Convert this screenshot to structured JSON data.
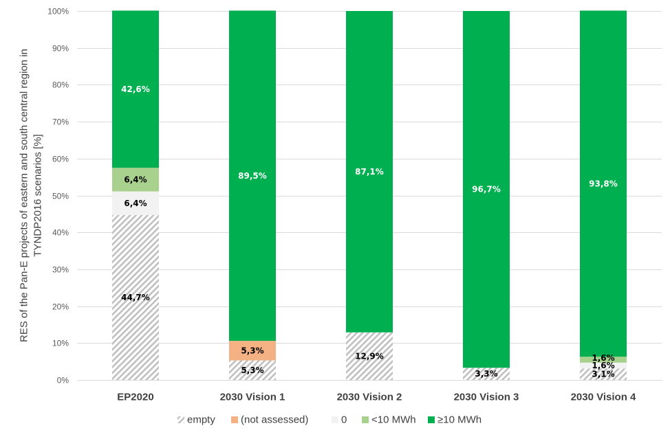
{
  "chart_data": {
    "type": "bar",
    "stacked": true,
    "orientation": "vertical",
    "normalized_percent": true,
    "title": "",
    "xlabel": "",
    "ylabel_lines": [
      "RES of the Pan-E projects of eastern and south central region in",
      "TYNDP2016 scenarios [%]"
    ],
    "ylim": [
      0,
      100
    ],
    "yticks": [
      0,
      10,
      20,
      30,
      40,
      50,
      60,
      70,
      80,
      90,
      100
    ],
    "ytick_labels": [
      "0%",
      "10%",
      "20%",
      "30%",
      "40%",
      "50%",
      "60%",
      "70%",
      "80%",
      "90%",
      "100%"
    ],
    "grid": true,
    "legend_position": "bottom",
    "categories": [
      "EP2020",
      "2030 Vision 1",
      "2030 Vision 2",
      "2030 Vision 3",
      "2030 Vision 4"
    ],
    "series": [
      {
        "name": "empty",
        "color": "#bfbfbf",
        "pattern": "diagonal-hatch",
        "values": [
          44.7,
          5.3,
          12.9,
          3.3,
          3.1
        ],
        "labels": [
          "44,7%",
          "5,3%",
          "12,9%",
          "3,3%",
          "3,1%"
        ]
      },
      {
        "name": "(not assessed)",
        "color": "#f4b183",
        "values": [
          0,
          5.3,
          0,
          0,
          0
        ],
        "labels": [
          "",
          "5,3%",
          "",
          "",
          ""
        ]
      },
      {
        "name": "0",
        "color": "#f2f2f2",
        "values": [
          6.4,
          0,
          0,
          0,
          1.6
        ],
        "labels": [
          "6,4%",
          "",
          "",
          "",
          "1,6%"
        ]
      },
      {
        "name": "<10 MWh",
        "color": "#a9d18e",
        "values": [
          6.4,
          0,
          0,
          0,
          1.6
        ],
        "labels": [
          "6,4%",
          "",
          "",
          "",
          "1,6%"
        ]
      },
      {
        "name": "≥10 MWh",
        "color": "#00b050",
        "values": [
          42.6,
          89.5,
          87.1,
          96.7,
          93.8
        ],
        "labels": [
          "42,6%",
          "89,5%",
          "87,1%",
          "96,7%",
          "93,8%"
        ]
      }
    ]
  }
}
